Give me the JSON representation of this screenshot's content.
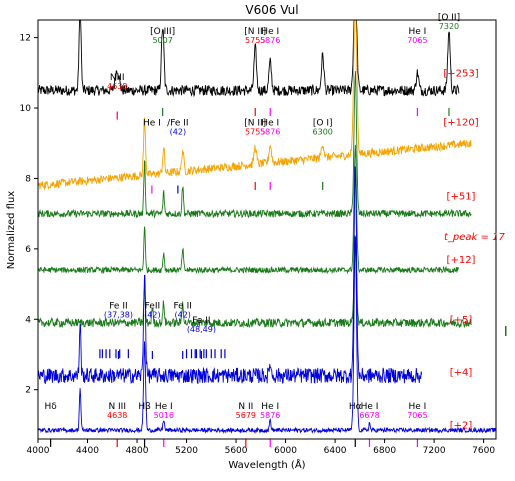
{
  "chart_data": {
    "type": "line",
    "title": "V606 Vul",
    "xlabel": "Wavelength (Å)",
    "ylabel": "Normalized flux",
    "xlim": [
      4000,
      7700
    ],
    "ylim": [
      0.6,
      12.5
    ],
    "xticks": [
      4000,
      4400,
      4800,
      5200,
      5600,
      6000,
      6400,
      6800,
      7200,
      7600
    ],
    "yticks": [
      2,
      4,
      6,
      8,
      10,
      12
    ],
    "grid": false,
    "epoch_labels": [
      {
        "text": "[+253]",
        "y": 10.9
      },
      {
        "text": "[+120]",
        "y": 9.5
      },
      {
        "text": "[+51]",
        "y": 7.4
      },
      {
        "text": "[+12]",
        "y": 5.6
      },
      {
        "text": "[+5]",
        "y": 3.9
      },
      {
        "text": "[+4]",
        "y": 2.4
      },
      {
        "text": "[+2]",
        "y": 0.9
      }
    ],
    "tpeak_label": "t_peak = 17",
    "series": [
      {
        "epoch": "+253",
        "color": "#000000",
        "xrange": [
          4000,
          7400
        ],
        "base": 10.5,
        "noise": 0.15,
        "lines": [
          [
            4340,
            2.5,
            8
          ],
          [
            4640,
            0.6,
            15
          ],
          [
            5007,
            1.8,
            10
          ],
          [
            5755,
            1.2,
            10
          ],
          [
            5876,
            0.8,
            10
          ],
          [
            6300,
            1.0,
            10
          ],
          [
            6563,
            3.0,
            12
          ],
          [
            7065,
            0.5,
            10
          ],
          [
            7320,
            1.7,
            10
          ]
        ]
      },
      {
        "epoch": "+120",
        "color": "#f5a300",
        "xrange": [
          4000,
          7500
        ],
        "base": 7.8,
        "slope": 1.2,
        "noise": 0.12,
        "lines": [
          [
            4861,
            1.6,
            8
          ],
          [
            5015,
            0.7,
            8
          ],
          [
            5169,
            0.6,
            8
          ],
          [
            5755,
            0.5,
            10
          ],
          [
            5876,
            0.5,
            10
          ],
          [
            6300,
            0.4,
            10
          ],
          [
            6563,
            4.5,
            12
          ]
        ]
      },
      {
        "epoch": "+51",
        "color": "#1a7a1a",
        "xrange": [
          4000,
          7500
        ],
        "base": 7.0,
        "noise": 0.1,
        "lines": [
          [
            4861,
            1.6,
            6
          ],
          [
            5015,
            0.6,
            6
          ],
          [
            5169,
            0.8,
            6
          ],
          [
            6563,
            4.0,
            10
          ]
        ]
      },
      {
        "epoch": "+12",
        "color": "#1a7a1a",
        "xrange": [
          4000,
          7400
        ],
        "base": 5.4,
        "noise": 0.08,
        "lines": [
          [
            4861,
            1.3,
            6
          ],
          [
            5015,
            0.5,
            6
          ],
          [
            5169,
            0.6,
            6
          ],
          [
            6563,
            3.5,
            10
          ]
        ]
      },
      {
        "epoch": "+5",
        "color": "#1a7a1a",
        "xrange": [
          4000,
          7500
        ],
        "base": 3.9,
        "noise": 0.12,
        "lines": [
          [
            4861,
            1.0,
            6
          ],
          [
            4924,
            0.4,
            6
          ],
          [
            5015,
            0.6,
            6
          ],
          [
            5169,
            0.6,
            6
          ],
          [
            6563,
            2.5,
            10
          ]
        ]
      },
      {
        "epoch": "+4",
        "color": "#0000dd",
        "xrange": [
          4000,
          7100
        ],
        "base": 2.4,
        "noise": 0.22,
        "lines": [
          [
            4340,
            1.5,
            6
          ],
          [
            4861,
            3.0,
            8
          ],
          [
            5876,
            0.4,
            6
          ],
          [
            6563,
            6.0,
            10
          ]
        ]
      },
      {
        "epoch": "+2",
        "color": "#0000dd",
        "xrange": [
          4000,
          7700
        ],
        "base": 0.85,
        "noise": 0.06,
        "lines": [
          [
            4340,
            1.2,
            6
          ],
          [
            4861,
            2.5,
            8
          ],
          [
            5015,
            0.3,
            6
          ],
          [
            5876,
            0.3,
            6
          ],
          [
            6563,
            5.5,
            10
          ],
          [
            6678,
            0.2,
            6
          ]
        ]
      }
    ],
    "line_ids": [
      {
        "name": "NIII",
        "wave": "4638",
        "x": 4640,
        "y": 10.8,
        "name_color": "#000000",
        "wave_color": "#ff0000",
        "tick_y": 9.9,
        "tick_color": "#ee0055"
      },
      {
        "name": "[O III]",
        "wave": "5007",
        "x": 5007,
        "y": 12.1,
        "name_color": "#000000",
        "wave_color": "#1a7a1a",
        "tick_y": 10.0,
        "tick_color": "#1a7a1a"
      },
      {
        "name": "[N II]",
        "wave": "5755",
        "x": 5755,
        "y": 12.1,
        "name_color": "#000000",
        "wave_color": "#ff0000",
        "tick_y": 10.0,
        "tick_color": "#ff0000"
      },
      {
        "name": "He I",
        "wave": "5876",
        "x": 5876,
        "y": 12.1,
        "name_color": "#000000",
        "wave_color": "#ff00ff",
        "tick_y": 10.0,
        "tick_color": "#ff00ff"
      },
      {
        "name": "He I",
        "wave": "7065",
        "x": 7065,
        "y": 12.1,
        "name_color": "#000000",
        "wave_color": "#ff00ff",
        "tick_y": 10.0,
        "tick_color": "#ff00ff"
      },
      {
        "name": "[O II]",
        "wave": "7320",
        "x": 7320,
        "y": 12.5,
        "name_color": "#000000",
        "wave_color": "#1a7a1a",
        "tick_y": 10.0,
        "tick_color": "#1a7a1a"
      },
      {
        "name": "He I",
        "wave": "",
        "x": 4920,
        "y": 9.5,
        "name_color": "#000000",
        "wave_color": "#000000",
        "tick_y": 7.8,
        "tick_color": "#ff00ff"
      },
      {
        "name": "/Fe II",
        "wave": "(42)",
        "x": 5130,
        "y": 9.5,
        "name_color": "#000000",
        "wave_color": "#0000dd",
        "tick_y": 7.8,
        "tick_color": "#0000dd"
      },
      {
        "name": "[N II]",
        "wave": "5755",
        "x": 5755,
        "y": 9.5,
        "name_color": "#000000",
        "wave_color": "#ff0000",
        "tick_y": 7.9,
        "tick_color": "#ff0000"
      },
      {
        "name": "He I",
        "wave": "5876",
        "x": 5876,
        "y": 9.5,
        "name_color": "#000000",
        "wave_color": "#ff00ff",
        "tick_y": 7.9,
        "tick_color": "#ff00ff"
      },
      {
        "name": "[O I]",
        "wave": "6300",
        "x": 6300,
        "y": 9.5,
        "name_color": "#000000",
        "wave_color": "#1a7a1a",
        "tick_y": 7.9,
        "tick_color": "#1a7a1a"
      },
      {
        "name": "Fe II",
        "wave": "(37,38)",
        "x": 4650,
        "y": 4.3,
        "name_color": "#000000",
        "wave_color": "#0000dd",
        "tick_y": 3.1,
        "tick_color": "#0000dd"
      },
      {
        "name": "FeII",
        "wave": "(42)",
        "x": 4924,
        "y": 4.3,
        "name_color": "#000000",
        "wave_color": "#0000dd",
        "tick_y": 3.1,
        "tick_color": "#0000dd"
      },
      {
        "name": "Fe II",
        "wave": "(42)",
        "x": 5169,
        "y": 4.3,
        "name_color": "#000000",
        "wave_color": "#0000dd",
        "tick_y": 3.1,
        "tick_color": "#0000dd"
      },
      {
        "name": "Fe II",
        "wave": "(48,49)",
        "x": 5320,
        "y": 3.9,
        "name_color": "#000000",
        "wave_color": "#0000dd",
        "tick_y": 3.1,
        "tick_color": "#0000dd"
      },
      {
        "name": "Hδ",
        "wave": "",
        "x": 4102,
        "y": 1.45,
        "name_color": "#000000",
        "wave_color": "#000000",
        "tick_y": 0.6,
        "tick_color": "#000000"
      },
      {
        "name": "N III",
        "wave": "4638",
        "x": 4640,
        "y": 1.45,
        "name_color": "#000000",
        "wave_color": "#ff0000",
        "tick_y": 0.6,
        "tick_color": "#ff0000"
      },
      {
        "name": "Hβ",
        "wave": "",
        "x": 4861,
        "y": 1.45,
        "name_color": "#000000",
        "wave_color": "#000000",
        "tick_y": 0.6,
        "tick_color": "#000000"
      },
      {
        "name": "He I",
        "wave": "5016",
        "x": 5016,
        "y": 1.45,
        "name_color": "#000000",
        "wave_color": "#ff00ff",
        "tick_y": 0.6,
        "tick_color": "#ff00ff"
      },
      {
        "name": "N II",
        "wave": "5679",
        "x": 5679,
        "y": 1.45,
        "name_color": "#000000",
        "wave_color": "#ff0000",
        "tick_y": 0.6,
        "tick_color": "#ff0000"
      },
      {
        "name": "He I",
        "wave": "5876",
        "x": 5876,
        "y": 1.45,
        "name_color": "#000000",
        "wave_color": "#ff00ff",
        "tick_y": 0.6,
        "tick_color": "#ff00ff"
      },
      {
        "name": "Hα",
        "wave": "",
        "x": 6563,
        "y": 1.45,
        "name_color": "#000000",
        "wave_color": "#000000",
        "tick_y": 0.6,
        "tick_color": "#000000"
      },
      {
        "name": "He I",
        "wave": "6678",
        "x": 6678,
        "y": 1.45,
        "name_color": "#000000",
        "wave_color": "#ff00ff",
        "tick_y": 0.6,
        "tick_color": "#ff00ff"
      },
      {
        "name": "He I",
        "wave": "7065",
        "x": 7065,
        "y": 1.45,
        "name_color": "#000000",
        "wave_color": "#ff00ff",
        "tick_y": 0.6,
        "tick_color": "#ff00ff"
      }
    ],
    "feii_tick_waves": [
      4500,
      4520,
      4550,
      4580,
      4630,
      4660,
      4730,
      5200,
      5240,
      5270,
      5280,
      5310,
      5340,
      5360,
      5400,
      5430,
      5480,
      5510
    ]
  }
}
